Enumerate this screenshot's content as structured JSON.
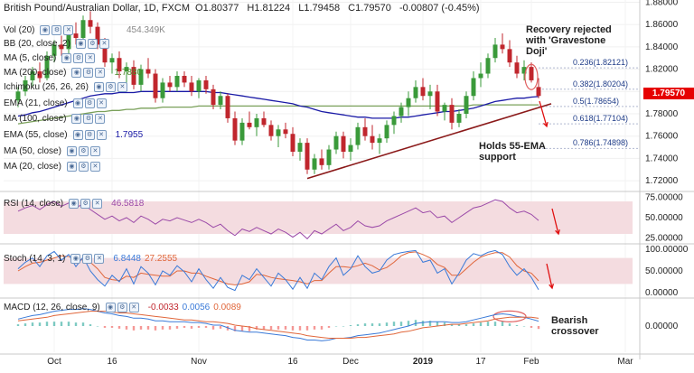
{
  "header": {
    "symbol_title": "British Pound/Australian Dollar, 1D, FXCM",
    "open": "O1.80377",
    "high": "H1.81224",
    "low": "L1.79458",
    "close": "C1.79570",
    "change": "-0.00807 (-0.45%)"
  },
  "legends": [
    {
      "label": "Vol (20)",
      "value": "",
      "color": "#222"
    },
    {
      "label": "BB (20, close, 2)",
      "value": "",
      "color": "#222"
    },
    {
      "label": "MA (5, close)",
      "value": "",
      "color": "#222"
    },
    {
      "label": "MA (200, close)",
      "value": "1.7880",
      "color": "#4a8a2a"
    },
    {
      "label": "Ichimoku (26, 26, 26)",
      "value": "",
      "color": "#222"
    },
    {
      "label": "EMA (21, close)",
      "value": "",
      "color": "#222"
    },
    {
      "label": "MA (100, close)",
      "value": "",
      "color": "#222"
    },
    {
      "label": "EMA (55, close)",
      "value": "1.7955",
      "color": "#1a1aa6"
    },
    {
      "label": "MA (50, close)",
      "value": "",
      "color": "#222"
    },
    {
      "label": "MA (20, close)",
      "value": "",
      "color": "#222"
    }
  ],
  "volume_label": "454.349K",
  "annotations": {
    "recovery": [
      "Recovery rejected",
      "with 'Gravestone",
      "Doji'"
    ],
    "support": [
      "Holds 55-EMA",
      "support"
    ],
    "bearish": [
      "Bearish",
      "crossover"
    ]
  },
  "fib_levels": [
    {
      "label": "0.236(1.82121)",
      "value": 1.82121
    },
    {
      "label": "0.382(1.80204)",
      "value": 1.80204
    },
    {
      "label": "0.5(1.78654)",
      "value": 1.78654
    },
    {
      "label": "0.618(1.77104)",
      "value": 1.77104
    },
    {
      "label": "0.786(1.74898)",
      "value": 1.74898
    }
  ],
  "current_price": "1.79570",
  "rsi_legend": {
    "label": "RSI (14, close)",
    "value": "46.5818"
  },
  "stoch_legend": {
    "label": "Stoch (14, 3, 1)",
    "value_k": "6.8448",
    "value_d": "27.2555"
  },
  "macd_legend": {
    "label": "MACD (12, 26, close, 9)",
    "value_hist": "-0.0033",
    "value_macd": "0.0056",
    "value_signal": "0.0089"
  },
  "x_labels": [
    "Oct",
    "16",
    "Nov",
    "16",
    "Dec",
    "2019",
    "17",
    "Feb",
    "Mar"
  ],
  "colors": {
    "up": "#3a9a3a",
    "down": "#c0262d",
    "ema55": "#1a1aa6",
    "ma200": "#7aa05a",
    "trendline": "#8b1a1a",
    "rsi_bg": "#f4dce0",
    "rsi_line": "#9b4aa8",
    "stoch_k": "#3a7ad8",
    "stoch_d": "#e0663a",
    "macd_line": "#3a7ad8",
    "signal_line": "#e0663a",
    "arrow": "#e01010",
    "fib": "#1f3c88"
  },
  "chart_data": [
    {
      "type": "candlestick",
      "title": "British Pound/Australian Dollar, 1D, FXCM",
      "y_ticks": [
        1.88,
        1.86,
        1.84,
        1.82,
        1.8,
        1.78,
        1.76,
        1.74,
        1.72
      ],
      "ylim": [
        1.712,
        1.882
      ],
      "x_labels": [
        "Oct",
        "16",
        "Nov",
        "16",
        "Dec",
        "2019",
        "17",
        "Feb",
        "Mar"
      ],
      "ohlc": [
        [
          1.792,
          1.804,
          1.786,
          1.8
        ],
        [
          1.8,
          1.814,
          1.796,
          1.81
        ],
        [
          1.81,
          1.822,
          1.804,
          1.818
        ],
        [
          1.818,
          1.826,
          1.808,
          1.812
        ],
        [
          1.812,
          1.836,
          1.81,
          1.832
        ],
        [
          1.832,
          1.846,
          1.826,
          1.842
        ],
        [
          1.842,
          1.85,
          1.832,
          1.838
        ],
        [
          1.838,
          1.856,
          1.834,
          1.852
        ],
        [
          1.852,
          1.862,
          1.842,
          1.848
        ],
        [
          1.848,
          1.868,
          1.846,
          1.864
        ],
        [
          1.864,
          1.872,
          1.852,
          1.858
        ],
        [
          1.858,
          1.862,
          1.838,
          1.842
        ],
        [
          1.842,
          1.848,
          1.822,
          1.826
        ],
        [
          1.826,
          1.834,
          1.816,
          1.83
        ],
        [
          1.83,
          1.836,
          1.812,
          1.818
        ],
        [
          1.818,
          1.826,
          1.806,
          1.822
        ],
        [
          1.822,
          1.828,
          1.802,
          1.806
        ],
        [
          1.806,
          1.824,
          1.8,
          1.82
        ],
        [
          1.82,
          1.83,
          1.812,
          1.816
        ],
        [
          1.816,
          1.82,
          1.79,
          1.794
        ],
        [
          1.794,
          1.812,
          1.79,
          1.808
        ],
        [
          1.808,
          1.814,
          1.8,
          1.804
        ],
        [
          1.804,
          1.818,
          1.8,
          1.814
        ],
        [
          1.814,
          1.818,
          1.804,
          1.808
        ],
        [
          1.808,
          1.814,
          1.796,
          1.8
        ],
        [
          1.8,
          1.812,
          1.794,
          1.81
        ],
        [
          1.81,
          1.814,
          1.798,
          1.802
        ],
        [
          1.802,
          1.806,
          1.784,
          1.788
        ],
        [
          1.788,
          1.8,
          1.784,
          1.796
        ],
        [
          1.796,
          1.798,
          1.772,
          1.776
        ],
        [
          1.776,
          1.782,
          1.752,
          1.756
        ],
        [
          1.756,
          1.776,
          1.752,
          1.772
        ],
        [
          1.772,
          1.782,
          1.766,
          1.768
        ],
        [
          1.768,
          1.78,
          1.76,
          1.776
        ],
        [
          1.776,
          1.782,
          1.768,
          1.77
        ],
        [
          1.77,
          1.774,
          1.756,
          1.76
        ],
        [
          1.76,
          1.77,
          1.75,
          1.766
        ],
        [
          1.766,
          1.772,
          1.758,
          1.762
        ],
        [
          1.762,
          1.768,
          1.742,
          1.746
        ],
        [
          1.746,
          1.758,
          1.738,
          1.754
        ],
        [
          1.754,
          1.758,
          1.726,
          1.73
        ],
        [
          1.73,
          1.744,
          1.726,
          1.74
        ],
        [
          1.74,
          1.748,
          1.73,
          1.734
        ],
        [
          1.734,
          1.752,
          1.73,
          1.748
        ],
        [
          1.748,
          1.764,
          1.744,
          1.76
        ],
        [
          1.76,
          1.764,
          1.74,
          1.746
        ],
        [
          1.746,
          1.758,
          1.738,
          1.752
        ],
        [
          1.752,
          1.772,
          1.748,
          1.768
        ],
        [
          1.768,
          1.776,
          1.756,
          1.76
        ],
        [
          1.76,
          1.77,
          1.748,
          1.754
        ],
        [
          1.754,
          1.762,
          1.744,
          1.758
        ],
        [
          1.758,
          1.774,
          1.754,
          1.77
        ],
        [
          1.77,
          1.782,
          1.762,
          1.778
        ],
        [
          1.778,
          1.79,
          1.772,
          1.786
        ],
        [
          1.786,
          1.8,
          1.778,
          1.794
        ],
        [
          1.794,
          1.81,
          1.79,
          1.804
        ],
        [
          1.804,
          1.812,
          1.792,
          1.796
        ],
        [
          1.796,
          1.806,
          1.784,
          1.8
        ],
        [
          1.8,
          1.806,
          1.778,
          1.782
        ],
        [
          1.782,
          1.79,
          1.774,
          1.788
        ],
        [
          1.788,
          1.794,
          1.766,
          1.772
        ],
        [
          1.772,
          1.784,
          1.768,
          1.78
        ],
        [
          1.78,
          1.8,
          1.776,
          1.796
        ],
        [
          1.796,
          1.818,
          1.792,
          1.812
        ],
        [
          1.812,
          1.826,
          1.804,
          1.816
        ],
        [
          1.816,
          1.834,
          1.812,
          1.83
        ],
        [
          1.83,
          1.848,
          1.826,
          1.842
        ],
        [
          1.842,
          1.852,
          1.834,
          1.838
        ],
        [
          1.838,
          1.846,
          1.822,
          1.826
        ],
        [
          1.826,
          1.832,
          1.812,
          1.816
        ],
        [
          1.816,
          1.828,
          1.81,
          1.822
        ],
        [
          1.822,
          1.826,
          1.808,
          1.81
        ],
        [
          1.804,
          1.812,
          1.794,
          1.796
        ]
      ],
      "ema55": [
        1.778,
        1.779,
        1.781,
        1.782,
        1.784,
        1.786,
        1.788,
        1.79,
        1.792,
        1.794,
        1.796,
        1.797,
        1.798,
        1.798,
        1.799,
        1.799,
        1.799,
        1.8,
        1.8,
        1.8,
        1.8,
        1.8,
        1.8,
        1.8,
        1.8,
        1.8,
        1.8,
        1.799,
        1.799,
        1.798,
        1.797,
        1.796,
        1.795,
        1.794,
        1.793,
        1.792,
        1.791,
        1.79,
        1.789,
        1.787,
        1.786,
        1.784,
        1.782,
        1.781,
        1.78,
        1.779,
        1.778,
        1.777,
        1.777,
        1.776,
        1.776,
        1.776,
        1.776,
        1.777,
        1.777,
        1.778,
        1.779,
        1.78,
        1.781,
        1.782,
        1.782,
        1.783,
        1.784,
        1.785,
        1.787,
        1.789,
        1.791,
        1.792,
        1.793,
        1.794,
        1.794,
        1.795,
        1.7955
      ],
      "ma200": [
        1.771,
        1.772,
        1.773,
        1.774,
        1.775,
        1.776,
        1.777,
        1.778,
        1.779,
        1.78,
        1.781,
        1.782,
        1.782,
        1.783,
        1.783,
        1.784,
        1.784,
        1.785,
        1.785,
        1.785,
        1.786,
        1.786,
        1.786,
        1.786,
        1.786,
        1.787,
        1.787,
        1.787,
        1.787,
        1.787,
        1.787,
        1.787,
        1.787,
        1.787,
        1.787,
        1.787,
        1.787,
        1.787,
        1.787,
        1.787,
        1.787,
        1.787,
        1.787,
        1.787,
        1.787,
        1.787,
        1.787,
        1.787,
        1.787,
        1.787,
        1.787,
        1.787,
        1.787,
        1.787,
        1.787,
        1.787,
        1.787,
        1.787,
        1.787,
        1.787,
        1.787,
        1.787,
        1.787,
        1.788,
        1.788,
        1.788,
        1.788,
        1.788,
        1.788,
        1.788,
        1.788,
        1.788,
        1.788
      ]
    },
    {
      "type": "line",
      "title": "RSI (14, close)",
      "y_ticks": [
        75,
        50,
        25
      ],
      "ylim": [
        20,
        80
      ],
      "series": [
        {
          "name": "RSI",
          "values": [
            58,
            62,
            65,
            60,
            66,
            70,
            64,
            68,
            62,
            67,
            60,
            54,
            48,
            52,
            46,
            50,
            44,
            52,
            48,
            42,
            48,
            46,
            50,
            47,
            44,
            48,
            44,
            38,
            42,
            34,
            28,
            36,
            33,
            38,
            34,
            30,
            36,
            32,
            26,
            32,
            24,
            34,
            30,
            36,
            42,
            34,
            38,
            46,
            40,
            38,
            40,
            46,
            50,
            54,
            58,
            62,
            56,
            58,
            50,
            52,
            44,
            50,
            56,
            62,
            64,
            68,
            72,
            70,
            62,
            56,
            58,
            54,
            46.5818
          ]
        }
      ]
    },
    {
      "type": "line",
      "title": "Stoch (14, 3, 1)",
      "y_ticks": [
        100,
        50,
        0
      ],
      "ylim": [
        0,
        100
      ],
      "series": [
        {
          "name": "%K",
          "values": [
            55,
            70,
            80,
            60,
            85,
            95,
            75,
            88,
            60,
            82,
            50,
            30,
            15,
            40,
            25,
            55,
            20,
            60,
            45,
            18,
            50,
            40,
            62,
            48,
            25,
            55,
            30,
            10,
            35,
            12,
            5,
            40,
            30,
            55,
            35,
            15,
            45,
            30,
            8,
            35,
            10,
            45,
            30,
            60,
            80,
            40,
            55,
            85,
            60,
            45,
            50,
            75,
            88,
            92,
            95,
            97,
            70,
            75,
            45,
            55,
            20,
            45,
            75,
            90,
            85,
            93,
            97,
            88,
            60,
            40,
            55,
            35,
            6.8448
          ]
        },
        {
          "name": "%D",
          "values": [
            50,
            60,
            68,
            70,
            75,
            80,
            85,
            83,
            78,
            75,
            70,
            55,
            35,
            30,
            28,
            38,
            35,
            45,
            42,
            40,
            38,
            38,
            50,
            50,
            45,
            45,
            38,
            32,
            26,
            20,
            18,
            20,
            25,
            42,
            40,
            35,
            32,
            30,
            28,
            25,
            20,
            28,
            28,
            45,
            60,
            60,
            58,
            62,
            68,
            62,
            52,
            58,
            70,
            85,
            92,
            94,
            88,
            80,
            65,
            58,
            40,
            40,
            55,
            70,
            82,
            88,
            92,
            92,
            82,
            62,
            50,
            45,
            27.2555
          ]
        }
      ]
    },
    {
      "type": "line",
      "title": "MACD (12, 26, close, 9)",
      "y_ticks": [
        0.0
      ],
      "ylim": [
        -0.03,
        0.03
      ],
      "series": [
        {
          "name": "MACD",
          "values": [
            0.008,
            0.01,
            0.012,
            0.013,
            0.015,
            0.017,
            0.018,
            0.019,
            0.019,
            0.02,
            0.019,
            0.017,
            0.015,
            0.014,
            0.012,
            0.011,
            0.009,
            0.009,
            0.008,
            0.006,
            0.006,
            0.005,
            0.005,
            0.005,
            0.004,
            0.004,
            0.003,
            0.001,
            0.001,
            -0.002,
            -0.005,
            -0.006,
            -0.007,
            -0.007,
            -0.008,
            -0.009,
            -0.01,
            -0.011,
            -0.013,
            -0.014,
            -0.016,
            -0.016,
            -0.017,
            -0.016,
            -0.014,
            -0.014,
            -0.013,
            -0.011,
            -0.01,
            -0.009,
            -0.008,
            -0.006,
            -0.004,
            -0.002,
            0.0,
            0.003,
            0.004,
            0.005,
            0.005,
            0.005,
            0.004,
            0.004,
            0.005,
            0.007,
            0.009,
            0.011,
            0.013,
            0.014,
            0.013,
            0.011,
            0.01,
            0.008,
            0.0056
          ]
        },
        {
          "name": "Signal",
          "values": [
            0.006,
            0.007,
            0.008,
            0.009,
            0.01,
            0.012,
            0.013,
            0.014,
            0.015,
            0.016,
            0.017,
            0.017,
            0.017,
            0.016,
            0.015,
            0.015,
            0.014,
            0.013,
            0.012,
            0.011,
            0.01,
            0.009,
            0.008,
            0.007,
            0.007,
            0.006,
            0.005,
            0.005,
            0.004,
            0.003,
            0.001,
            0.0,
            -0.001,
            -0.003,
            -0.004,
            -0.005,
            -0.006,
            -0.007,
            -0.008,
            -0.009,
            -0.011,
            -0.012,
            -0.013,
            -0.014,
            -0.014,
            -0.014,
            -0.014,
            -0.013,
            -0.013,
            -0.012,
            -0.011,
            -0.01,
            -0.009,
            -0.007,
            -0.006,
            -0.004,
            -0.002,
            -0.001,
            0.0,
            0.001,
            0.002,
            0.002,
            0.003,
            0.004,
            0.005,
            0.006,
            0.008,
            0.009,
            0.01,
            0.01,
            0.01,
            0.01,
            0.0089
          ]
        }
      ]
    }
  ]
}
